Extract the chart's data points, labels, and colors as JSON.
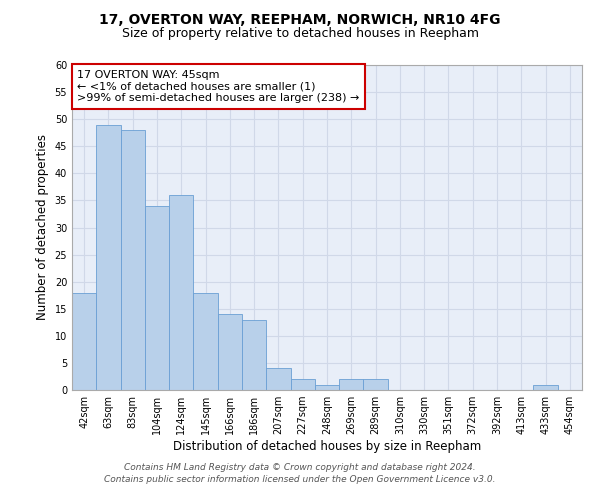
{
  "title1": "17, OVERTON WAY, REEPHAM, NORWICH, NR10 4FG",
  "title2": "Size of property relative to detached houses in Reepham",
  "xlabel": "Distribution of detached houses by size in Reepham",
  "ylabel": "Number of detached properties",
  "categories": [
    "42sqm",
    "63sqm",
    "83sqm",
    "104sqm",
    "124sqm",
    "145sqm",
    "166sqm",
    "186sqm",
    "207sqm",
    "227sqm",
    "248sqm",
    "269sqm",
    "289sqm",
    "310sqm",
    "330sqm",
    "351sqm",
    "372sqm",
    "392sqm",
    "413sqm",
    "433sqm",
    "454sqm"
  ],
  "values": [
    18,
    49,
    48,
    34,
    36,
    18,
    14,
    13,
    4,
    2,
    1,
    2,
    2,
    0,
    0,
    0,
    0,
    0,
    0,
    1,
    0
  ],
  "bar_color": "#b8d0ea",
  "bar_edge_color": "#6a9fd4",
  "annotation_box_text": "17 OVERTON WAY: 45sqm\n← <1% of detached houses are smaller (1)\n>99% of semi-detached houses are larger (238) →",
  "annotation_box_color": "#ffffff",
  "annotation_box_edge": "#cc0000",
  "ylim": [
    0,
    60
  ],
  "yticks": [
    0,
    5,
    10,
    15,
    20,
    25,
    30,
    35,
    40,
    45,
    50,
    55,
    60
  ],
  "grid_color": "#d0d8e8",
  "bg_color": "#e8eef8",
  "footer1": "Contains HM Land Registry data © Crown copyright and database right 2024.",
  "footer2": "Contains public sector information licensed under the Open Government Licence v3.0.",
  "title_fontsize": 10,
  "subtitle_fontsize": 9,
  "axis_label_fontsize": 8.5,
  "tick_fontsize": 7,
  "annotation_fontsize": 8,
  "footer_fontsize": 6.5
}
